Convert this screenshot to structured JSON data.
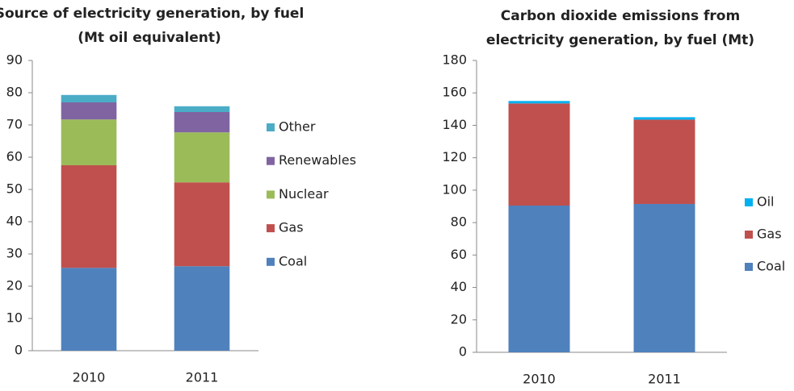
{
  "chart_data": [
    {
      "type": "bar",
      "stacked": true,
      "title": [
        "Source of electricity generation, by fuel",
        "(Mt  oil equivalent)"
      ],
      "categories": [
        "2010",
        "2011"
      ],
      "series": [
        {
          "name": "Coal",
          "color": "#4f81bd",
          "values": [
            25.7,
            26.2
          ]
        },
        {
          "name": "Gas",
          "color": "#c0504d",
          "values": [
            31.8,
            26
          ]
        },
        {
          "name": "Nuclear",
          "color": "#9bbb59",
          "values": [
            14.2,
            15.5
          ]
        },
        {
          "name": "Renewables",
          "color": "#8064a2",
          "values": [
            5.3,
            6.3
          ]
        },
        {
          "name": "Other",
          "color": "#4bacc6",
          "values": [
            2.3,
            1.8
          ]
        }
      ],
      "ylim": [
        0,
        90
      ],
      "yticks": [
        0,
        10,
        20,
        30,
        40,
        50,
        60,
        70,
        80,
        90
      ],
      "grid": false,
      "legend": "right"
    },
    {
      "type": "bar",
      "stacked": true,
      "title": [
        "Carbon dioxide emissions from",
        "electricity generation, by fuel (Mt)"
      ],
      "categories": [
        "2010",
        "2011"
      ],
      "series": [
        {
          "name": "Coal",
          "color": "#4f81bd",
          "values": [
            90.5,
            91.5
          ]
        },
        {
          "name": "Gas",
          "color": "#c0504d",
          "values": [
            63,
            52
          ]
        },
        {
          "name": "Oil",
          "color": "#00b0f0",
          "values": [
            1.5,
            1.5
          ]
        }
      ],
      "ylim": [
        0,
        180
      ],
      "yticks": [
        0,
        20,
        40,
        60,
        80,
        100,
        120,
        140,
        160,
        180
      ],
      "grid": false,
      "legend": "right"
    }
  ]
}
